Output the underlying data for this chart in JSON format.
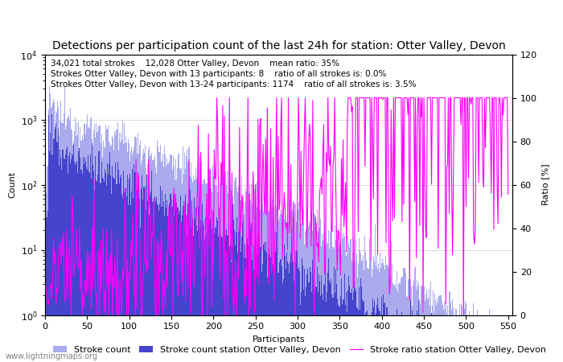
{
  "title": "Detections per participation count of the last 24h for station: Otter Valley, Devon",
  "annotation_lines": [
    "34,021 total strokes    12,028 Otter Valley, Devon    mean ratio: 35%",
    "Strokes Otter Valley, Devon with 13 participants: 8    ratio of all strokes is: 0.0%",
    "Strokes Otter Valley, Devon with 13-24 participants: 1174    ratio of all strokes is: 3.5%"
  ],
  "xlabel": "Participants",
  "ylabel_left": "Count",
  "ylabel_right": "Ratio [%]",
  "xlim": [
    0,
    555
  ],
  "ylim_left": [
    1,
    10000
  ],
  "ylim_right": [
    0,
    120
  ],
  "yticks_right": [
    0,
    20,
    40,
    60,
    80,
    100,
    120
  ],
  "xticks": [
    0,
    50,
    100,
    150,
    200,
    250,
    300,
    350,
    400,
    450,
    500,
    550
  ],
  "legend_entries": [
    "Stroke count",
    "Stroke count station Otter Valley, Devon",
    "Stroke ratio station Otter Valley, Devon"
  ],
  "color_global_bar": "#aaaaee",
  "color_station_bar": "#4444cc",
  "color_ratio_line": "#ff00ff",
  "watermark": "www.lightningmaps.org",
  "title_fontsize": 10,
  "annotation_fontsize": 7.5,
  "axis_fontsize": 8,
  "tick_fontsize": 8,
  "legend_fontsize": 8
}
